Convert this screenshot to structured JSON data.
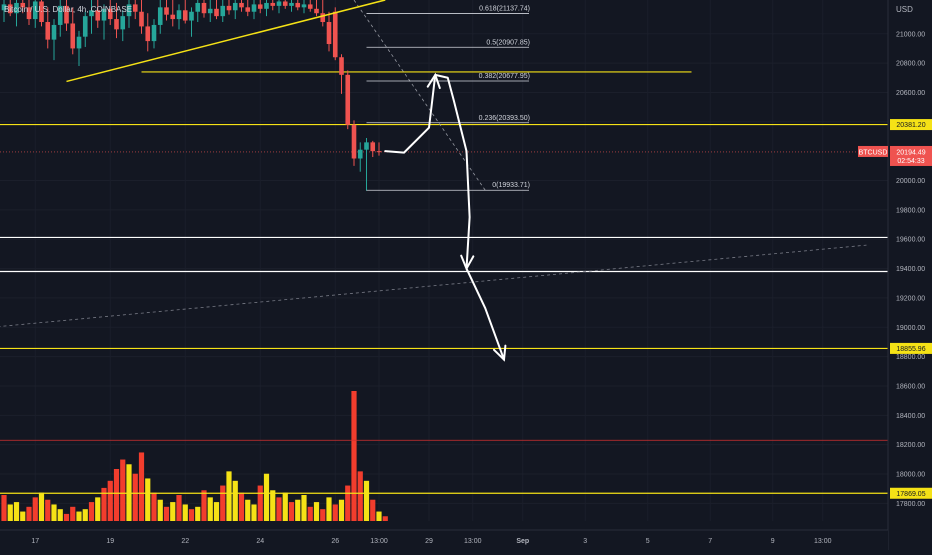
{
  "symbol_title": "Bitcoin / U.S. Dollar, 4h, COINBASE",
  "currency": "USD",
  "chart_data": {
    "type": "candlestick",
    "title": "Bitcoin / U.S. Dollar, 4h, COINBASE",
    "ylabel": "USD",
    "ylim": [
      17680,
      21230
    ],
    "y_ticks": [
      {
        "value": 21000,
        "label": "21000.00"
      },
      {
        "value": 20800,
        "label": "20800.00"
      },
      {
        "value": 20600,
        "label": "20600.00"
      },
      {
        "value": 20400,
        "label": "20400.00"
      },
      {
        "value": 20000,
        "label": "20000.00"
      },
      {
        "value": 19800,
        "label": "19800.00"
      },
      {
        "value": 19600,
        "label": "19600.00"
      },
      {
        "value": 19400,
        "label": "19400.00"
      },
      {
        "value": 19200,
        "label": "19200.00"
      },
      {
        "value": 19000,
        "label": "19000.00"
      },
      {
        "value": 18800,
        "label": "18800.00"
      },
      {
        "value": 18600,
        "label": "18600.00"
      },
      {
        "value": 18400,
        "label": "18400.00"
      },
      {
        "value": 18200,
        "label": "18200.00"
      },
      {
        "value": 18000,
        "label": "18000.00"
      },
      {
        "value": 17800,
        "label": "17800.00"
      }
    ],
    "x_ticks": [
      {
        "bar": 5,
        "label": "17"
      },
      {
        "bar": 17,
        "label": "19"
      },
      {
        "bar": 29,
        "label": "22"
      },
      {
        "bar": 41,
        "label": "24"
      },
      {
        "bar": 53,
        "label": "26"
      },
      {
        "bar": 60,
        "label": "13:00"
      },
      {
        "bar": 68,
        "label": "29"
      },
      {
        "bar": 75,
        "label": "13:00"
      },
      {
        "bar": 83,
        "label": "Sep"
      },
      {
        "bar": 93,
        "label": "3"
      },
      {
        "bar": 103,
        "label": "5"
      },
      {
        "bar": 113,
        "label": "7"
      },
      {
        "bar": 123,
        "label": "9"
      },
      {
        "bar": 131,
        "label": "13:00"
      }
    ],
    "candles": [
      {
        "o": 21160,
        "h": 21230,
        "l": 21080,
        "c": 21200
      },
      {
        "o": 21200,
        "h": 21230,
        "l": 21120,
        "c": 21140
      },
      {
        "o": 21140,
        "h": 21230,
        "l": 21050,
        "c": 21210
      },
      {
        "o": 21210,
        "h": 21230,
        "l": 21140,
        "c": 21180
      },
      {
        "o": 21180,
        "h": 21230,
        "l": 21060,
        "c": 21100
      },
      {
        "o": 21100,
        "h": 21230,
        "l": 21040,
        "c": 21220
      },
      {
        "o": 21220,
        "h": 21230,
        "l": 21050,
        "c": 21080
      },
      {
        "o": 21080,
        "h": 21180,
        "l": 20900,
        "c": 20960
      },
      {
        "o": 20960,
        "h": 21100,
        "l": 20820,
        "c": 21060
      },
      {
        "o": 21060,
        "h": 21230,
        "l": 20980,
        "c": 21190
      },
      {
        "o": 21190,
        "h": 21230,
        "l": 21020,
        "c": 21070
      },
      {
        "o": 21070,
        "h": 21180,
        "l": 20860,
        "c": 20900
      },
      {
        "o": 20900,
        "h": 21020,
        "l": 20780,
        "c": 20980
      },
      {
        "o": 20980,
        "h": 21150,
        "l": 20910,
        "c": 21120
      },
      {
        "o": 21120,
        "h": 21230,
        "l": 21000,
        "c": 21160
      },
      {
        "o": 21160,
        "h": 21230,
        "l": 21040,
        "c": 21090
      },
      {
        "o": 21090,
        "h": 21200,
        "l": 20960,
        "c": 21170
      },
      {
        "o": 21170,
        "h": 21230,
        "l": 21060,
        "c": 21100
      },
      {
        "o": 21100,
        "h": 21210,
        "l": 20970,
        "c": 21030
      },
      {
        "o": 21030,
        "h": 21160,
        "l": 20950,
        "c": 21120
      },
      {
        "o": 21120,
        "h": 21230,
        "l": 21040,
        "c": 21200
      },
      {
        "o": 21200,
        "h": 21230,
        "l": 21100,
        "c": 21150
      },
      {
        "o": 21150,
        "h": 21230,
        "l": 21000,
        "c": 21050
      },
      {
        "o": 21050,
        "h": 21140,
        "l": 20880,
        "c": 20950
      },
      {
        "o": 20950,
        "h": 21100,
        "l": 20900,
        "c": 21060
      },
      {
        "o": 21060,
        "h": 21230,
        "l": 21000,
        "c": 21180
      },
      {
        "o": 21180,
        "h": 21230,
        "l": 21090,
        "c": 21130
      },
      {
        "o": 21130,
        "h": 21230,
        "l": 21050,
        "c": 21100
      },
      {
        "o": 21100,
        "h": 21200,
        "l": 21030,
        "c": 21160
      },
      {
        "o": 21160,
        "h": 21230,
        "l": 21070,
        "c": 21090
      },
      {
        "o": 21090,
        "h": 21180,
        "l": 20980,
        "c": 21150
      },
      {
        "o": 21150,
        "h": 21230,
        "l": 21080,
        "c": 21210
      },
      {
        "o": 21210,
        "h": 21230,
        "l": 21110,
        "c": 21140
      },
      {
        "o": 21140,
        "h": 21230,
        "l": 21080,
        "c": 21170
      },
      {
        "o": 21170,
        "h": 21230,
        "l": 21100,
        "c": 21120
      },
      {
        "o": 21120,
        "h": 21230,
        "l": 21080,
        "c": 21190
      },
      {
        "o": 21190,
        "h": 21230,
        "l": 21130,
        "c": 21160
      },
      {
        "o": 21160,
        "h": 21230,
        "l": 21100,
        "c": 21210
      },
      {
        "o": 21210,
        "h": 21230,
        "l": 21150,
        "c": 21180
      },
      {
        "o": 21180,
        "h": 21230,
        "l": 21120,
        "c": 21150
      },
      {
        "o": 21150,
        "h": 21230,
        "l": 21100,
        "c": 21200
      },
      {
        "o": 21200,
        "h": 21230,
        "l": 21140,
        "c": 21170
      },
      {
        "o": 21170,
        "h": 21230,
        "l": 21120,
        "c": 21210
      },
      {
        "o": 21210,
        "h": 21230,
        "l": 21160,
        "c": 21190
      },
      {
        "o": 21190,
        "h": 21230,
        "l": 21140,
        "c": 21220
      },
      {
        "o": 21220,
        "h": 21230,
        "l": 21170,
        "c": 21190
      },
      {
        "o": 21190,
        "h": 21230,
        "l": 21150,
        "c": 21210
      },
      {
        "o": 21210,
        "h": 21230,
        "l": 21160,
        "c": 21180
      },
      {
        "o": 21180,
        "h": 21230,
        "l": 21140,
        "c": 21200
      },
      {
        "o": 21200,
        "h": 21230,
        "l": 21150,
        "c": 21170
      },
      {
        "o": 21170,
        "h": 21230,
        "l": 21120,
        "c": 21140
      },
      {
        "o": 21140,
        "h": 21230,
        "l": 21050,
        "c": 21080
      },
      {
        "o": 21080,
        "h": 21150,
        "l": 20880,
        "c": 20930
      },
      {
        "o": 21150,
        "h": 21180,
        "l": 20820,
        "c": 20840
      },
      {
        "o": 20840,
        "h": 20860,
        "l": 20590,
        "c": 20720
      },
      {
        "o": 20720,
        "h": 20750,
        "l": 20350,
        "c": 20380
      },
      {
        "o": 20380,
        "h": 20410,
        "l": 20100,
        "c": 20150
      },
      {
        "o": 20150,
        "h": 20260,
        "l": 20060,
        "c": 20210
      },
      {
        "o": 20210,
        "h": 20290,
        "l": 19930,
        "c": 20260
      },
      {
        "o": 20260,
        "h": 20270,
        "l": 20160,
        "c": 20200
      },
      {
        "o": 20200,
        "h": 20260,
        "l": 20170,
        "c": 20194.49
      }
    ],
    "volume": [
      {
        "v": 22,
        "up": false
      },
      {
        "v": 14,
        "up": true
      },
      {
        "v": 16,
        "up": true
      },
      {
        "v": 8,
        "up": true
      },
      {
        "v": 12,
        "up": false
      },
      {
        "v": 20,
        "up": false
      },
      {
        "v": 24,
        "up": true
      },
      {
        "v": 18,
        "up": false
      },
      {
        "v": 14,
        "up": true
      },
      {
        "v": 10,
        "up": true
      },
      {
        "v": 6,
        "up": false
      },
      {
        "v": 12,
        "up": false
      },
      {
        "v": 8,
        "up": true
      },
      {
        "v": 10,
        "up": true
      },
      {
        "v": 16,
        "up": false
      },
      {
        "v": 20,
        "up": true
      },
      {
        "v": 28,
        "up": false
      },
      {
        "v": 34,
        "up": false
      },
      {
        "v": 44,
        "up": false
      },
      {
        "v": 52,
        "up": false
      },
      {
        "v": 48,
        "up": true
      },
      {
        "v": 40,
        "up": false
      },
      {
        "v": 58,
        "up": false
      },
      {
        "v": 36,
        "up": true
      },
      {
        "v": 24,
        "up": false
      },
      {
        "v": 18,
        "up": true
      },
      {
        "v": 12,
        "up": false
      },
      {
        "v": 16,
        "up": true
      },
      {
        "v": 22,
        "up": false
      },
      {
        "v": 14,
        "up": true
      },
      {
        "v": 10,
        "up": false
      },
      {
        "v": 12,
        "up": true
      },
      {
        "v": 26,
        "up": false
      },
      {
        "v": 20,
        "up": true
      },
      {
        "v": 16,
        "up": true
      },
      {
        "v": 30,
        "up": false
      },
      {
        "v": 42,
        "up": true
      },
      {
        "v": 34,
        "up": true
      },
      {
        "v": 24,
        "up": false
      },
      {
        "v": 18,
        "up": true
      },
      {
        "v": 14,
        "up": true
      },
      {
        "v": 30,
        "up": false
      },
      {
        "v": 40,
        "up": true
      },
      {
        "v": 26,
        "up": true
      },
      {
        "v": 20,
        "up": false
      },
      {
        "v": 24,
        "up": true
      },
      {
        "v": 16,
        "up": false
      },
      {
        "v": 18,
        "up": true
      },
      {
        "v": 22,
        "up": true
      },
      {
        "v": 12,
        "up": false
      },
      {
        "v": 16,
        "up": true
      },
      {
        "v": 10,
        "up": false
      },
      {
        "v": 20,
        "up": true
      },
      {
        "v": 14,
        "up": false
      },
      {
        "v": 18,
        "up": true
      },
      {
        "v": 30,
        "up": false
      },
      {
        "v": 110,
        "up": false
      },
      {
        "v": 42,
        "up": false
      },
      {
        "v": 34,
        "up": true
      },
      {
        "v": 18,
        "up": false
      },
      {
        "v": 8,
        "up": true
      },
      {
        "v": 4,
        "up": false
      }
    ],
    "fib_levels": [
      {
        "ratio": "0.618",
        "value": 21137.74,
        "label": "0.618(21137.74)"
      },
      {
        "ratio": "0.5",
        "value": 20907.85,
        "label": "0.5(20907.85)"
      },
      {
        "ratio": "0.382",
        "value": 20677.95,
        "label": "0.382(20677.95)"
      },
      {
        "ratio": "0.236",
        "value": 20393.5,
        "label": "0.236(20393.50)"
      },
      {
        "ratio": "0",
        "value": 19933.71,
        "label": "0(19933.71)"
      }
    ],
    "horizontal_lines": [
      {
        "value": 20381.2,
        "label": "20381.20",
        "color": "#f5e216",
        "labeled": true
      },
      {
        "value": 19612,
        "label": "",
        "color": "#ffffff",
        "labeled": false
      },
      {
        "value": 19380,
        "label": "",
        "color": "#ffffff",
        "labeled": false
      },
      {
        "value": 18855.96,
        "label": "18855.96",
        "color": "#f5e216",
        "labeled": true
      },
      {
        "value": 17869.05,
        "label": "17869.05",
        "color": "#f5e216",
        "labeled": true
      },
      {
        "value": 18230,
        "label": "",
        "color": "#d32f2f",
        "labeled": false
      }
    ],
    "resistance_line": {
      "value": 20740,
      "color": "#f5e216"
    },
    "trendline": {
      "from": {
        "bar": 10,
        "value": 20675
      },
      "to": {
        "bar": 61,
        "value": 21230
      },
      "color": "#f5e216"
    },
    "long_trend_dashed": {
      "from": {
        "bar": -2,
        "value": 19000
      },
      "to": {
        "bar": 138,
        "value": 19560
      },
      "color": "#787b86"
    },
    "fib_diagonal_dashed": {
      "from": {
        "bar": 56,
        "value": 21230
      },
      "to": {
        "bar": 77,
        "value": 19933.71
      },
      "color": "#9598a1"
    },
    "current_price": {
      "symbol": "BTCUSD",
      "price": "20194.49",
      "countdown": "02:54:33",
      "value": 20194.49,
      "color": "#ef5350"
    },
    "projection_path": [
      {
        "bar": 61,
        "value": 20200
      },
      {
        "bar": 64,
        "value": 20190
      },
      {
        "bar": 68,
        "value": 20360
      },
      {
        "bar": 69,
        "value": 20720
      },
      {
        "bar": 71,
        "value": 20700
      },
      {
        "bar": 72,
        "value": 20540
      },
      {
        "bar": 74,
        "value": 20200
      },
      {
        "bar": 74.5,
        "value": 19750
      },
      {
        "bar": 74,
        "value": 19400
      },
      {
        "bar": 77,
        "value": 19130
      },
      {
        "bar": 80,
        "value": 18780
      }
    ]
  }
}
